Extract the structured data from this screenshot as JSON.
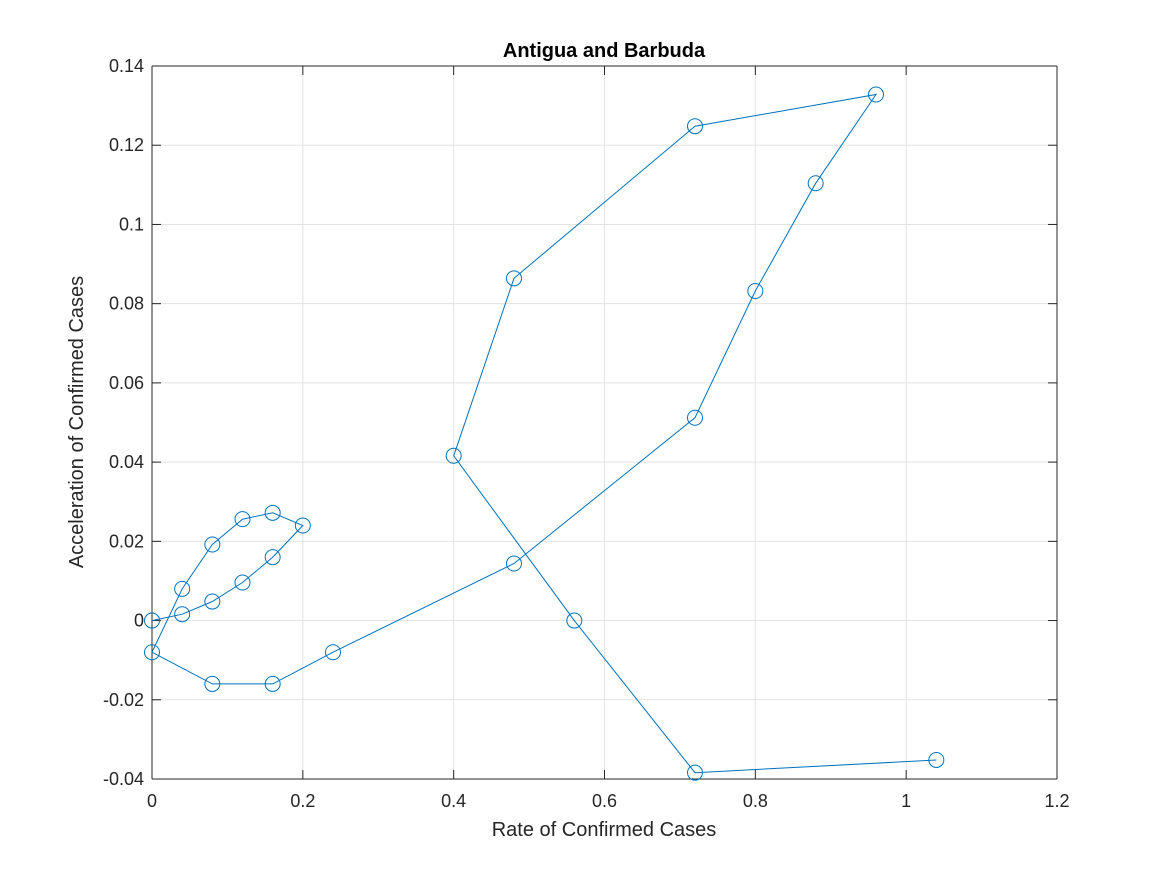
{
  "chart_data": {
    "type": "scatter",
    "title": "Antigua and Barbuda",
    "xlabel": "Rate of Confirmed Cases",
    "ylabel": "Acceleration of Confirmed Cases",
    "xlim": [
      0,
      1.2
    ],
    "ylim": [
      -0.04,
      0.14
    ],
    "grid": true,
    "marker": "circle",
    "connected": true,
    "series_color": "#0072BD",
    "x_ticks": [
      "0",
      "0.2",
      "0.4",
      "0.6",
      "0.8",
      "1",
      "1.2"
    ],
    "y_ticks": [
      "-0.04",
      "-0.02",
      "0",
      "0.02",
      "0.04",
      "0.06",
      "0.08",
      "0.1",
      "0.12",
      "0.14"
    ],
    "x_tick_values": [
      0,
      0.2,
      0.4,
      0.6,
      0.8,
      1.0,
      1.2
    ],
    "y_tick_values": [
      -0.04,
      -0.02,
      0,
      0.02,
      0.04,
      0.06,
      0.08,
      0.1,
      0.12,
      0.14
    ],
    "points": [
      {
        "x": 0,
        "y": 0
      },
      {
        "x": 0.04,
        "y": 0.0016
      },
      {
        "x": 0.08,
        "y": 0.0048
      },
      {
        "x": 0.12,
        "y": 0.0096
      },
      {
        "x": 0.16,
        "y": 0.016
      },
      {
        "x": 0.2,
        "y": 0.024
      },
      {
        "x": 0.16,
        "y": 0.0272
      },
      {
        "x": 0.12,
        "y": 0.0256
      },
      {
        "x": 0.08,
        "y": 0.0192
      },
      {
        "x": 0.04,
        "y": 0.008
      },
      {
        "x": 0,
        "y": -0.008
      },
      {
        "x": 0.08,
        "y": -0.016
      },
      {
        "x": 0.16,
        "y": -0.016
      },
      {
        "x": 0.24,
        "y": -0.008
      },
      {
        "x": 0.48,
        "y": 0.0144
      },
      {
        "x": 0.72,
        "y": 0.0512
      },
      {
        "x": 0.8,
        "y": 0.0832
      },
      {
        "x": 0.88,
        "y": 0.1104
      },
      {
        "x": 0.96,
        "y": 0.1328
      },
      {
        "x": 0.72,
        "y": 0.1248
      },
      {
        "x": 0.48,
        "y": 0.0864
      },
      {
        "x": 0.4,
        "y": 0.0416
      },
      {
        "x": 0.56,
        "y": 0
      },
      {
        "x": 0.72,
        "y": -0.0384
      },
      {
        "x": 1.04,
        "y": -0.0352
      }
    ]
  }
}
